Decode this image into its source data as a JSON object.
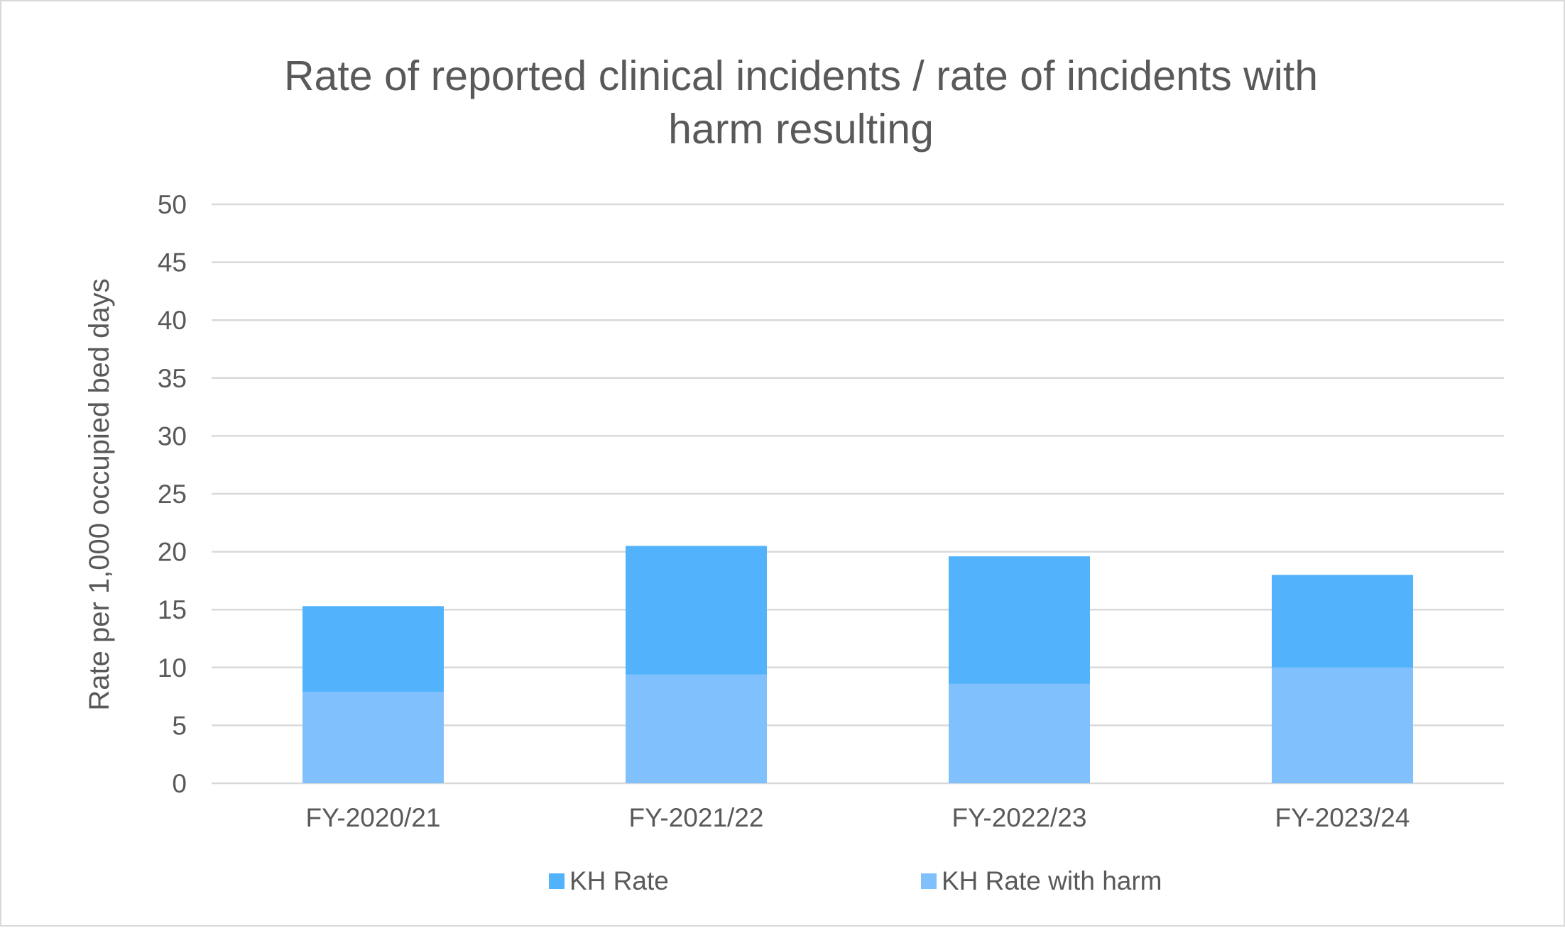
{
  "chart_data": {
    "type": "bar",
    "stacked": true,
    "title": [
      "Rate of reported clinical incidents / rate of incidents with",
      "harm resulting"
    ],
    "xlabel": "",
    "ylabel": "Rate per 1,000 occupied bed days",
    "categories": [
      "FY-2020/21",
      "FY-2021/22",
      "FY-2022/23",
      "FY-2023/24"
    ],
    "ylim": [
      0,
      50
    ],
    "yticks": [
      0,
      5,
      10,
      15,
      20,
      25,
      30,
      35,
      40,
      45,
      50
    ],
    "grid": true,
    "legend_position": "bottom",
    "series": [
      {
        "name": "KH Rate",
        "color": "#52b3fc",
        "values": [
          15.3,
          20.5,
          19.6,
          18.0
        ]
      },
      {
        "name": "KH Rate with harm",
        "color": "#80c1fd",
        "values": [
          7.9,
          9.4,
          8.6,
          10.0
        ]
      }
    ],
    "note": "KH Rate is the total bar height; KH Rate with harm is the lower portion drawn over it."
  }
}
